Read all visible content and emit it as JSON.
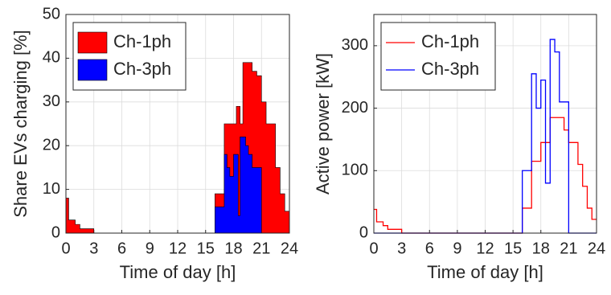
{
  "chart_data": [
    {
      "type": "area",
      "drawstyle": "steps-post",
      "xlabel": "Time of day [h]",
      "ylabel": "Share EVs charging [%]",
      "x": [
        0,
        0.3,
        1,
        1.5,
        3,
        16,
        17,
        17.3,
        17.6,
        18,
        18.3,
        18.5,
        18.7,
        19,
        19.3,
        19.6,
        20,
        20.5,
        21,
        21.5,
        22,
        22.5,
        23,
        23.5,
        24
      ],
      "series": [
        {
          "name": "Ch-1ph",
          "color": "#ff0000",
          "values": [
            8,
            3,
            2,
            1,
            0,
            9,
            25,
            25,
            25,
            25,
            29,
            29,
            25,
            39,
            39,
            39,
            37,
            36,
            30,
            25,
            25,
            15,
            9,
            5,
            5
          ]
        },
        {
          "name": "Ch-3ph",
          "color": "#0000ff",
          "values": [
            0,
            0,
            0,
            0,
            0,
            6,
            18,
            15,
            13,
            18,
            18,
            4,
            22,
            22,
            20,
            18,
            15,
            15,
            0,
            0,
            0,
            0,
            0,
            0,
            0
          ]
        }
      ],
      "xlim": [
        0,
        24
      ],
      "xticks": [
        0,
        3,
        6,
        9,
        12,
        15,
        18,
        21,
        24
      ],
      "ylim": [
        0,
        50
      ],
      "yticks": [
        0,
        10,
        20,
        30,
        40,
        50
      ],
      "grid": true,
      "legend": "upper left"
    },
    {
      "type": "line",
      "drawstyle": "steps-post",
      "xlabel": "Time of day [h]",
      "ylabel": "Active power [kW]",
      "x": [
        0,
        0.3,
        1,
        1.5,
        3,
        16,
        17,
        17.5,
        18,
        18.5,
        19,
        19.5,
        20,
        20.5,
        21,
        22,
        22.5,
        23,
        23.5,
        24
      ],
      "series": [
        {
          "name": "Ch-1ph",
          "color": "#ff0000",
          "values": [
            38,
            18,
            12,
            6,
            0,
            40,
            115,
            115,
            145,
            145,
            185,
            185,
            185,
            165,
            145,
            110,
            75,
            40,
            22,
            22
          ]
        },
        {
          "name": "Ch-3ph",
          "color": "#0000ff",
          "values": [
            0,
            0,
            0,
            0,
            0,
            100,
            255,
            200,
            245,
            80,
            310,
            290,
            210,
            210,
            0,
            0,
            0,
            0,
            0,
            0
          ]
        }
      ],
      "xlim": [
        0,
        24
      ],
      "xticks": [
        0,
        3,
        6,
        9,
        12,
        15,
        18,
        21,
        24
      ],
      "ylim": [
        0,
        350
      ],
      "yticks": [
        0,
        100,
        200,
        300
      ],
      "grid": true,
      "legend": "upper left"
    }
  ]
}
